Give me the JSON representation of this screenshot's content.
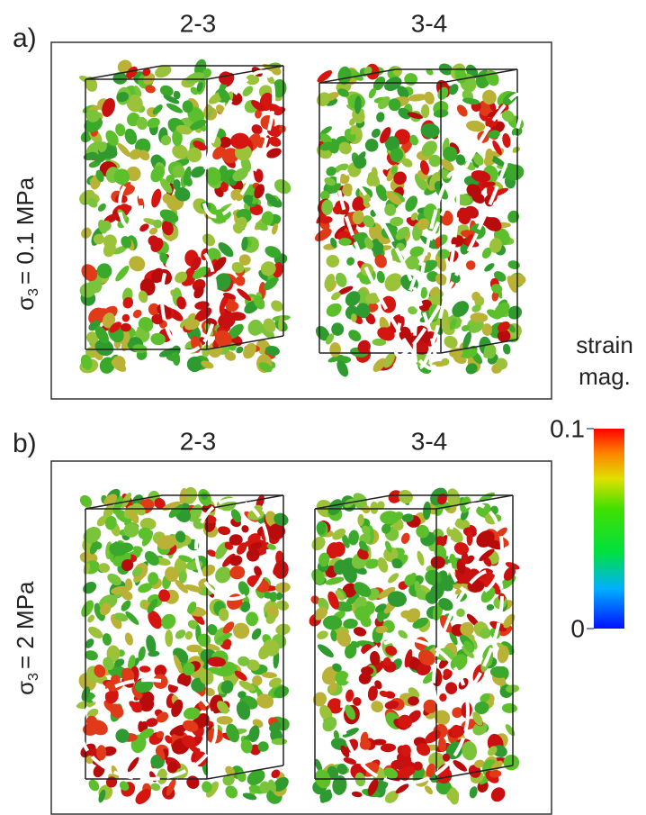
{
  "panels": [
    {
      "label": "a)",
      "columns": [
        "2-3",
        "3-4"
      ],
      "row_label": {
        "symbol": "σ",
        "subscript": "3",
        "text": "= 0.1 MPa"
      }
    },
    {
      "label": "b)",
      "columns": [
        "2-3",
        "3-4"
      ],
      "row_label": {
        "symbol": "σ",
        "subscript": "3",
        "text": "= 2 MPa"
      }
    }
  ],
  "colorbar": {
    "title": [
      "strain",
      "mag."
    ],
    "lim": [
      0,
      0.1
    ],
    "ticks": [
      0,
      0.1
    ]
  }
}
